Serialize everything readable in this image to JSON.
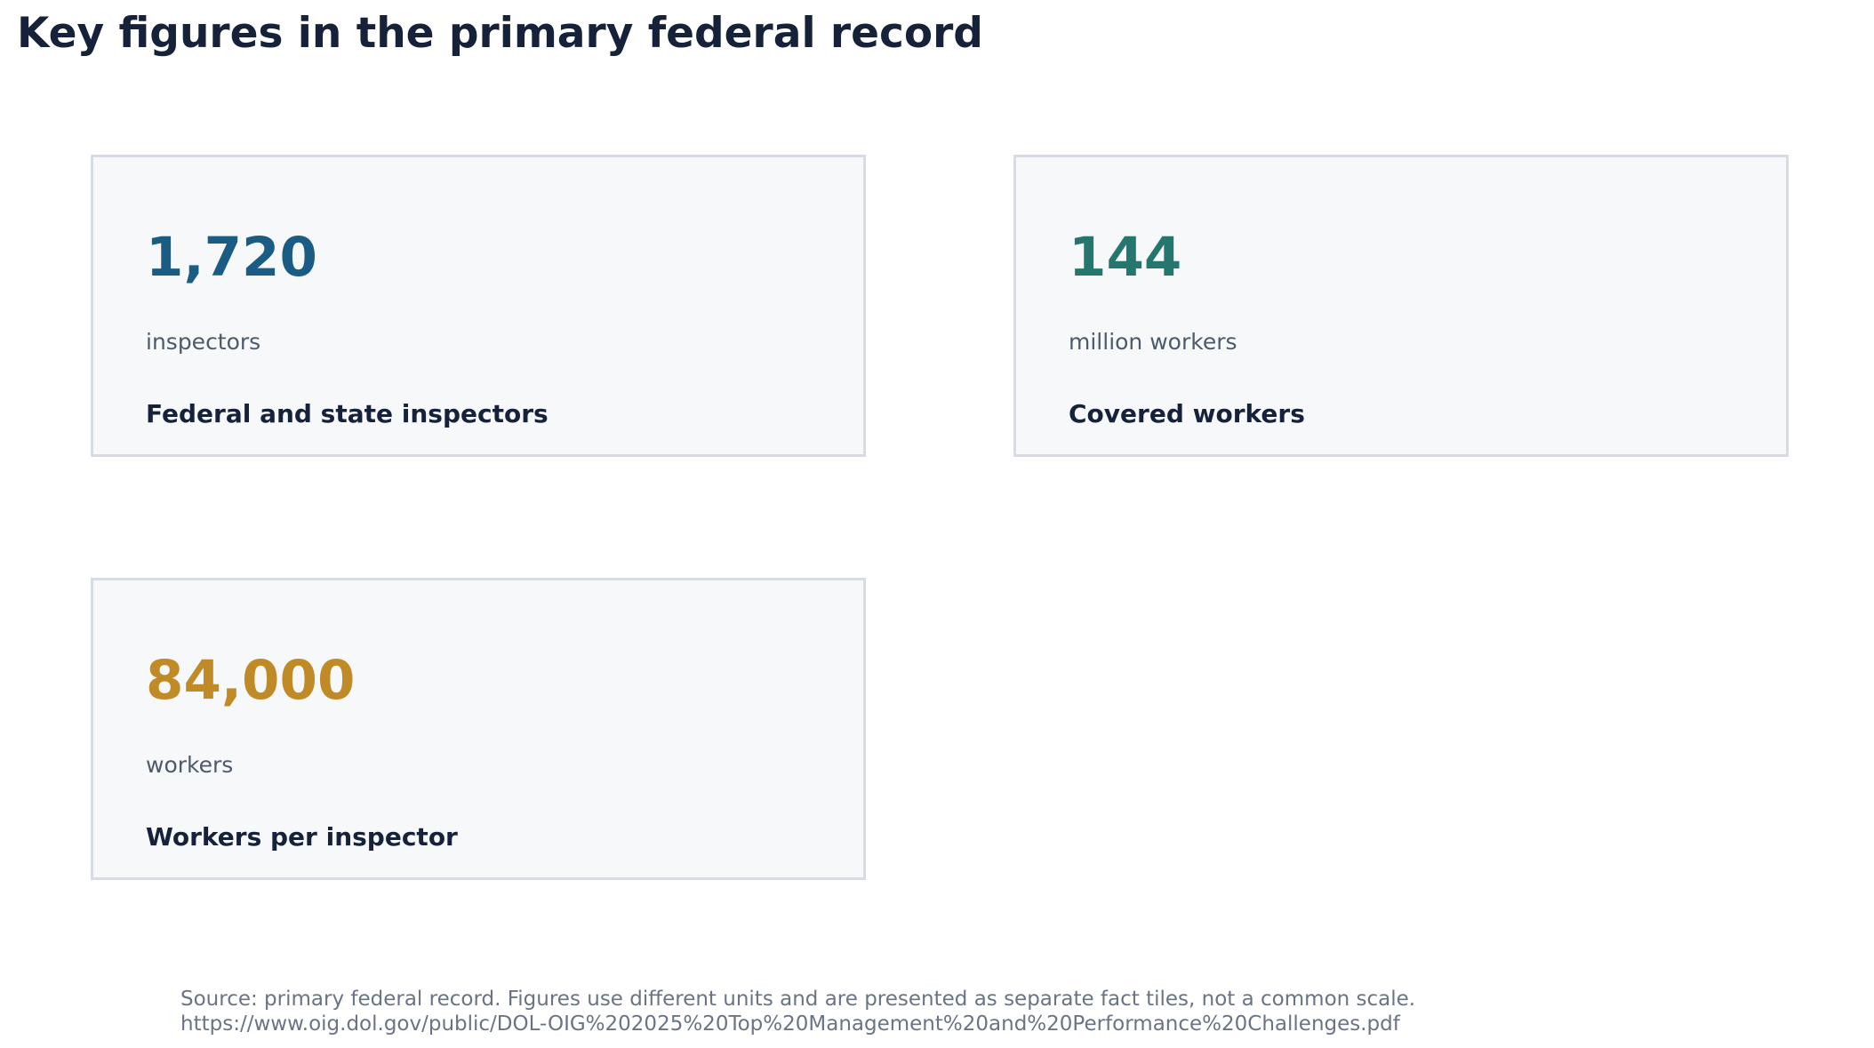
{
  "header": {
    "title": "Key figures in the primary federal record"
  },
  "chart_data": {
    "type": "table",
    "title": "Key figures in the primary federal record",
    "tiles": [
      {
        "value": "1,720",
        "numeric_value": 1720,
        "unit": "inspectors",
        "label": "Federal and state inspectors",
        "color": "#1b5c85"
      },
      {
        "value": "144",
        "numeric_value": 144,
        "unit": "million workers",
        "label": "Covered workers",
        "color": "#24766f"
      },
      {
        "value": "84,000",
        "numeric_value": 84000,
        "unit": "workers",
        "label": "Workers per inspector",
        "color": "#c08a27"
      }
    ]
  },
  "footer": {
    "source_line": "Source: primary federal record. Figures use different units and are presented as separate fact tiles, not a common scale.",
    "url_line": "https://www.oig.dol.gov/public/DOL-OIG%202025%20Top%20Management%20and%20Performance%20Challenges.pdf"
  }
}
